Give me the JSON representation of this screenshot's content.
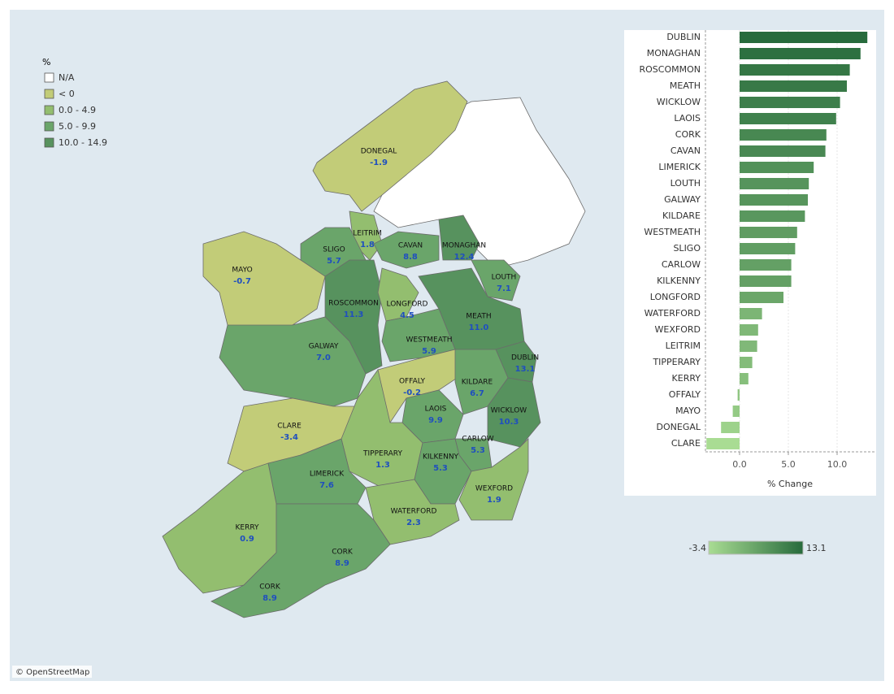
{
  "map": {
    "legend": {
      "title": "%",
      "items": [
        {
          "label": "N/A",
          "color": "#ffffff"
        },
        {
          "label": "< 0",
          "color": "#c2cc78"
        },
        {
          "label": "0.0 - 4.9",
          "color": "#93be6f"
        },
        {
          "label": "5.0 - 9.9",
          "color": "#6aa56a"
        },
        {
          "label": "10.0 - 14.9",
          "color": "#57925e"
        }
      ]
    },
    "labels": [
      {
        "name": "DONEGAL",
        "value": "-1.9"
      },
      {
        "name": "LEITRIM",
        "value": "1.8"
      },
      {
        "name": "SLIGO",
        "value": "5.7"
      },
      {
        "name": "CAVAN",
        "value": "8.8"
      },
      {
        "name": "MONAGHAN",
        "value": "12.4"
      },
      {
        "name": "MAYO",
        "value": "-0.7"
      },
      {
        "name": "LOUTH",
        "value": "7.1"
      },
      {
        "name": "ROSCOMMON",
        "value": "11.3"
      },
      {
        "name": "LONGFORD",
        "value": "4.5"
      },
      {
        "name": "MEATH",
        "value": "11.0"
      },
      {
        "name": "WESTMEATH",
        "value": "5.9"
      },
      {
        "name": "GALWAY",
        "value": "7.0"
      },
      {
        "name": "DUBLIN",
        "value": "13.1"
      },
      {
        "name": "OFFALY",
        "value": "-0.2"
      },
      {
        "name": "KILDARE",
        "value": "6.7"
      },
      {
        "name": "LAOIS",
        "value": "9.9"
      },
      {
        "name": "WICKLOW",
        "value": "10.3"
      },
      {
        "name": "CLARE",
        "value": "-3.4"
      },
      {
        "name": "CARLOW",
        "value": "5.3"
      },
      {
        "name": "TIPPERARY",
        "value": "1.3"
      },
      {
        "name": "KILKENNY",
        "value": "5.3"
      },
      {
        "name": "LIMERICK",
        "value": "7.6"
      },
      {
        "name": "WEXFORD",
        "value": "1.9"
      },
      {
        "name": "WATERFORD",
        "value": "2.3"
      },
      {
        "name": "KERRY",
        "value": "0.9"
      },
      {
        "name": "CORK",
        "value": "8.9"
      },
      {
        "name": "CORK",
        "value": "8.9"
      }
    ],
    "credit": "© OpenStreetMap"
  },
  "chart_data": {
    "type": "bar",
    "orientation": "horizontal",
    "categories": [
      "DUBLIN",
      "MONAGHAN",
      "ROSCOMMON",
      "MEATH",
      "WICKLOW",
      "LAOIS",
      "CORK",
      "CAVAN",
      "LIMERICK",
      "LOUTH",
      "GALWAY",
      "KILDARE",
      "WESTMEATH",
      "SLIGO",
      "CARLOW",
      "KILKENNY",
      "LONGFORD",
      "WATERFORD",
      "WEXFORD",
      "LEITRIM",
      "TIPPERARY",
      "KERRY",
      "OFFALY",
      "MAYO",
      "DONEGAL",
      "CLARE"
    ],
    "values": [
      13.1,
      12.4,
      11.3,
      11.0,
      10.3,
      9.9,
      8.9,
      8.8,
      7.6,
      7.1,
      7.0,
      6.7,
      5.9,
      5.7,
      5.3,
      5.3,
      4.5,
      2.3,
      1.9,
      1.8,
      1.3,
      0.9,
      -0.2,
      -0.7,
      -1.9,
      -3.4
    ],
    "xlim": [
      -3.5,
      14
    ],
    "xticks": [
      {
        "value": 0,
        "label": "0.0"
      },
      {
        "value": 5,
        "label": "5.0"
      },
      {
        "value": 10,
        "label": "10.0"
      }
    ],
    "x_label": "% Change",
    "grid": true,
    "color_legend": {
      "min": -3.4,
      "max": 13.1,
      "colors": [
        "#a9dc93",
        "#276b3c"
      ]
    }
  }
}
